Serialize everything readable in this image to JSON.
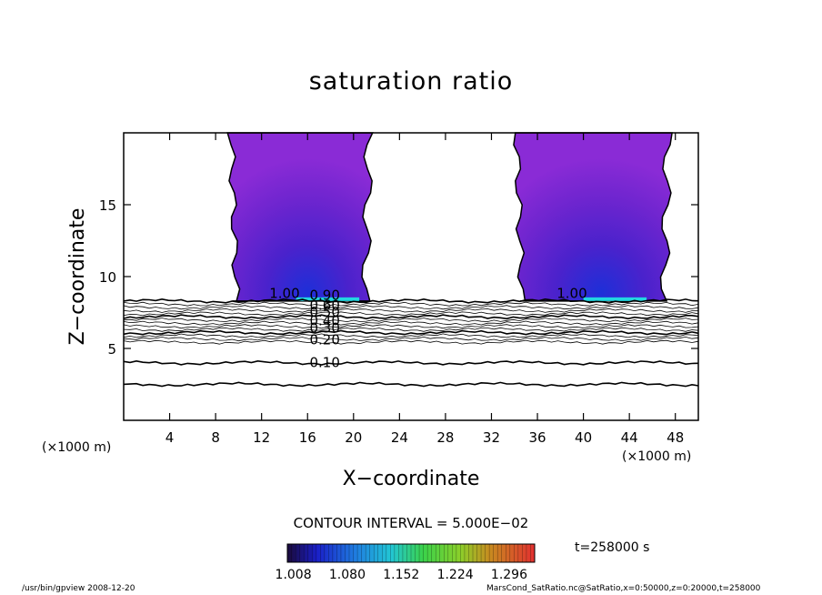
{
  "chart_data": {
    "type": "heatmap",
    "title": "saturation ratio",
    "xlabel": "X−coordinate",
    "ylabel": "Z−coordinate",
    "x_unit_left": "(×1000 m)",
    "x_unit_right": "(×1000 m)",
    "xlim": [
      0,
      50
    ],
    "ylim": [
      0,
      20
    ],
    "xticks": [
      "4",
      "8",
      "12",
      "16",
      "20",
      "24",
      "28",
      "32",
      "36",
      "40",
      "44",
      "48"
    ],
    "yticks": [
      "5",
      "10",
      "15"
    ],
    "contour_labels": [
      "1.00",
      "0.90",
      "0.60",
      "0.50",
      "0.40",
      "0.30",
      "0.20",
      "0.10",
      "1.00"
    ],
    "contour_interval": "CONTOUR INTERVAL = 5.000E−02",
    "colorbar": {
      "ticks": [
        "1.008",
        "1.080",
        "1.152",
        "1.224",
        "1.296"
      ],
      "range": [
        1.0,
        1.33
      ]
    },
    "time_label": "t=258000 s",
    "supersaturated_columns": [
      {
        "x_start": 9.5,
        "x_end": 21.5,
        "z_bottom": 8.3,
        "z_top": 20
      },
      {
        "x_start": 34.5,
        "x_end": 47.5,
        "z_bottom": 8.3,
        "z_top": 20
      }
    ],
    "grid": false
  },
  "footer": {
    "left": "/usr/bin/gpview   2008-12-20",
    "right": "MarsCond_SatRatio.nc@SatRatio,x=0:50000,z=0:20000,t=258000"
  },
  "colors": {
    "column_fill": "#8a2bd6",
    "column_dark": "#3a18c8",
    "base_line": "#22d6e0"
  }
}
